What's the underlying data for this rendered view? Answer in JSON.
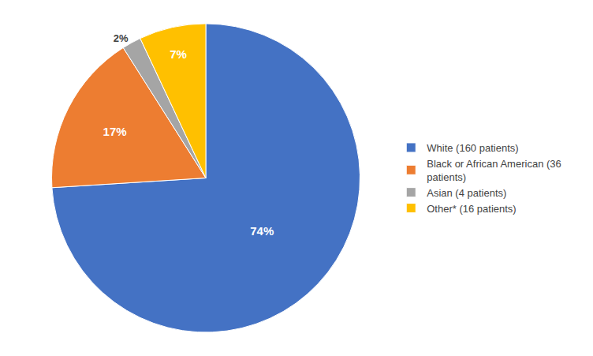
{
  "chart_data": {
    "type": "pie",
    "categories": [
      "White (160 patients)",
      "Black or African American (36\n  patients)",
      "Asian (4 patients)",
      "Other* (16 patients)"
    ],
    "values": [
      74,
      17,
      2,
      7
    ],
    "value_labels": [
      "74%",
      "17%",
      "2%",
      "7%"
    ],
    "colors": [
      "#4472C4",
      "#ED7D31",
      "#A5A5A5",
      "#FFC000"
    ],
    "data_labels": true,
    "legend": "right"
  }
}
